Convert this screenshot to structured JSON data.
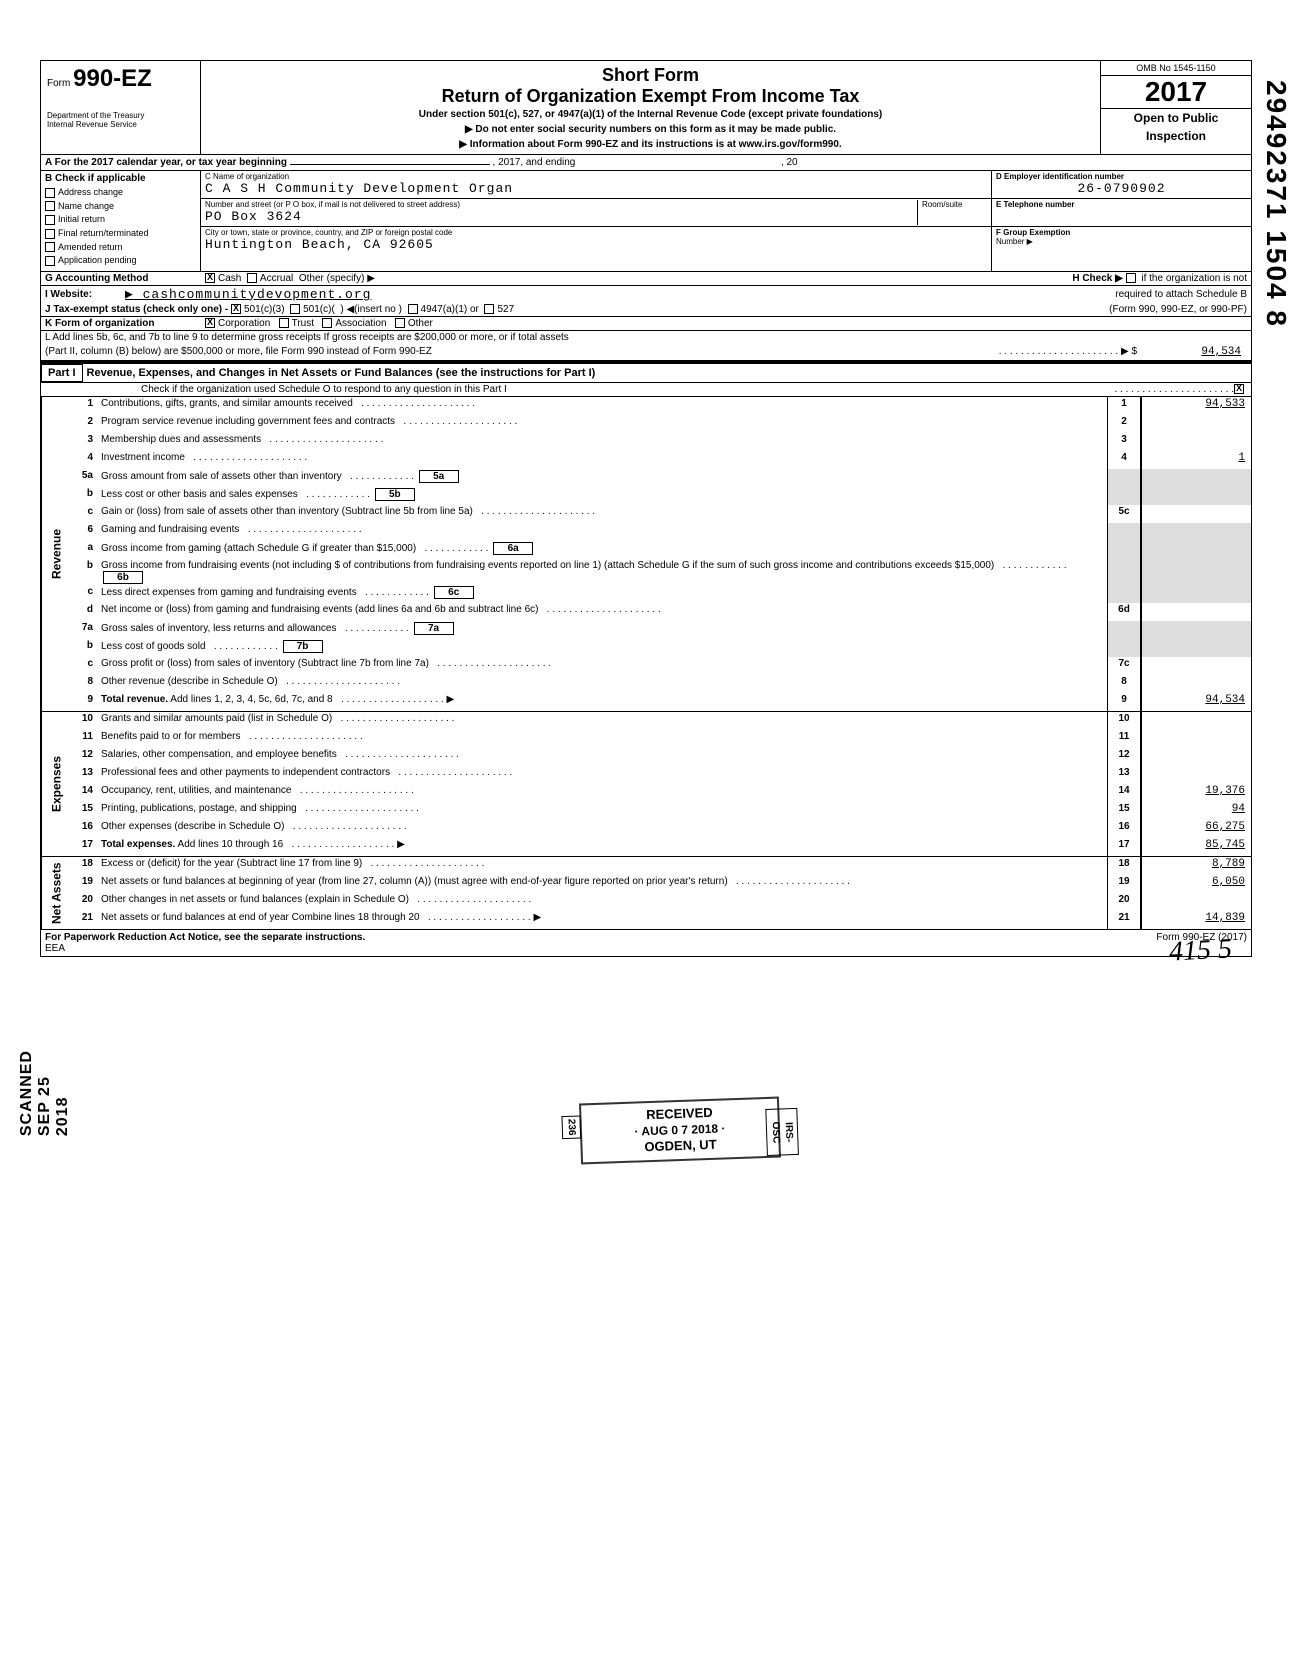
{
  "meta": {
    "omb": "OMB No 1545-1150",
    "year": "2017",
    "open": "Open to Public",
    "inspection": "Inspection",
    "watermark": "29492371 1504 8"
  },
  "header": {
    "form_label": "Form",
    "form_number": "990-EZ",
    "dept1": "Department of the Treasury",
    "dept2": "Internal Revenue Service",
    "title1": "Short Form",
    "title2": "Return of Organization Exempt From Income Tax",
    "sub": "Under section 501(c), 527, or 4947(a)(1) of the Internal Revenue Code (except private foundations)",
    "arrow1": "▶  Do not enter social security numbers on this form as it may be made public.",
    "arrow2": "▶  Information about Form 990-EZ and its instructions is at www.irs.gov/form990."
  },
  "section_a": {
    "a_label": "A  For the 2017 calendar year, or tax year beginning",
    "a_mid": ", 2017, and ending",
    "a_end": ", 20"
  },
  "checks": {
    "header": "B  Check if applicable",
    "items": [
      "Address change",
      "Name change",
      "Initial return",
      "Final return/terminated",
      "Amended return",
      "Application pending"
    ]
  },
  "org": {
    "name_label": "C   Name of organization",
    "name": "C A S H Community Development Organ",
    "street_label": "Number and street (or P O  box, if mail is not delivered to street address)",
    "room_label": "Room/suite",
    "street": "PO Box 3624",
    "city_label": "City or town, state or province, country, and ZIP or foreign postal code",
    "city": "Huntington Beach, CA 92605"
  },
  "right_block": {
    "d_label": "D  Employer identification number",
    "d_value": "26-0790902",
    "e_label": "E  Telephone number",
    "f_label": "F  Group Exemption",
    "f_sub": "Number  ▶"
  },
  "lines_top": {
    "g": "G  Accounting Method",
    "g_cash": "Cash",
    "g_accrual": "Accrual",
    "g_other": "Other (specify) ▶",
    "h": "H  Check ▶",
    "h_text": "if the organization is not",
    "h_text2": "required to attach Schedule B",
    "h_text3": "(Form 990, 990-EZ, or 990-PF)",
    "i": "I    Website:",
    "i_value": "▶ cashcommunitydevopment.org",
    "j": "J   Tax-exempt status (check only one) -",
    "j_opts": [
      "501(c)(3)",
      "501(c)(",
      "(insert no )",
      "4947(a)(1) or",
      "527"
    ],
    "k": "K  Form of organization",
    "k_opts": [
      "Corporation",
      "Trust",
      "Association",
      "Other"
    ],
    "l": "L  Add lines 5b, 6c, and 7b to line 9 to determine gross receipts  If gross receipts are $200,000 or more, or if total assets",
    "l2": "(Part II, column (B) below) are $500,000 or more, file Form 990 instead of Form 990-EZ",
    "l_arrow": "▶ $",
    "l_value": "94,534"
  },
  "part1": {
    "label": "Part I",
    "title": "Revenue, Expenses, and Changes in Net Assets or Fund Balances (see the instructions for Part I)",
    "check_line": "Check if the organization used Schedule O to respond to any question in this Part I"
  },
  "revenue_lines": [
    {
      "n": "1",
      "d": "Contributions, gifts, grants, and similar amounts received",
      "box": "1",
      "amt": "94,533"
    },
    {
      "n": "2",
      "d": "Program service revenue including government fees and contracts",
      "box": "2",
      "amt": ""
    },
    {
      "n": "3",
      "d": "Membership dues and assessments",
      "box": "3",
      "amt": ""
    },
    {
      "n": "4",
      "d": "Investment income",
      "box": "4",
      "amt": "1"
    },
    {
      "n": "5a",
      "d": "Gross amount from sale of assets other than inventory",
      "mid": "5a"
    },
    {
      "n": "b",
      "d": "Less  cost or other basis and sales expenses",
      "mid": "5b"
    },
    {
      "n": "c",
      "d": "Gain or (loss) from sale of assets other than inventory (Subtract line 5b from line 5a)",
      "box": "5c",
      "amt": ""
    },
    {
      "n": "6",
      "d": "Gaming and fundraising events"
    },
    {
      "n": "a",
      "d": "Gross income from gaming (attach Schedule G if greater than $15,000)",
      "mid": "6a"
    },
    {
      "n": "b",
      "d": "Gross income from fundraising events (not including       $                                    of contributions from fundraising events reported on line 1) (attach Schedule G if the sum of such gross income and contributions exceeds $15,000)",
      "mid": "6b"
    },
    {
      "n": "c",
      "d": "Less  direct expenses from gaming and fundraising events",
      "mid": "6c"
    },
    {
      "n": "d",
      "d": "Net income or (loss) from gaming and fundraising events (add lines 6a and 6b and subtract line 6c)",
      "box": "6d",
      "amt": ""
    },
    {
      "n": "7a",
      "d": "Gross sales of inventory, less returns and allowances",
      "mid": "7a"
    },
    {
      "n": "b",
      "d": "Less  cost of goods sold",
      "mid": "7b"
    },
    {
      "n": "c",
      "d": "Gross profit or (loss) from sales of inventory (Subtract line 7b from line 7a)",
      "box": "7c",
      "amt": ""
    },
    {
      "n": "8",
      "d": "Other revenue (describe in Schedule O)",
      "box": "8",
      "amt": ""
    },
    {
      "n": "9",
      "d": "Total revenue.  Add lines 1, 2, 3, 4, 5c, 6d, 7c, and 8",
      "box": "9",
      "amt": "94,534",
      "arrow": true,
      "bold": true
    }
  ],
  "expense_lines": [
    {
      "n": "10",
      "d": "Grants and similar amounts paid (list in Schedule O)",
      "box": "10",
      "amt": ""
    },
    {
      "n": "11",
      "d": "Benefits paid to or for members",
      "box": "11",
      "amt": ""
    },
    {
      "n": "12",
      "d": "Salaries, other compensation, and employee benefits",
      "box": "12",
      "amt": ""
    },
    {
      "n": "13",
      "d": "Professional fees and other payments to independent contractors",
      "box": "13",
      "amt": ""
    },
    {
      "n": "14",
      "d": "Occupancy, rent, utilities, and maintenance",
      "box": "14",
      "amt": "19,376"
    },
    {
      "n": "15",
      "d": "Printing, publications, postage, and shipping",
      "box": "15",
      "amt": "94"
    },
    {
      "n": "16",
      "d": "Other expenses (describe in Schedule O)",
      "box": "16",
      "amt": "66,275"
    },
    {
      "n": "17",
      "d": "Total expenses.  Add lines 10 through 16",
      "box": "17",
      "amt": "85,745",
      "arrow": true,
      "bold": true
    }
  ],
  "netasset_lines": [
    {
      "n": "18",
      "d": "Excess or (deficit) for the year (Subtract line 17 from line 9)",
      "box": "18",
      "amt": "8,789"
    },
    {
      "n": "19",
      "d": "Net assets or fund balances at beginning of year (from line 27, column (A)) (must agree with end-of-year figure reported on prior year's return)",
      "box": "19",
      "amt": "6,050"
    },
    {
      "n": "20",
      "d": "Other changes in net assets or fund balances (explain in Schedule O)",
      "box": "20",
      "amt": ""
    },
    {
      "n": "21",
      "d": "Net assets or fund balances at end of year  Combine lines 18 through 20",
      "box": "21",
      "amt": "14,839",
      "arrow": true
    }
  ],
  "side_labels": {
    "revenue": "Revenue",
    "expenses": "Expenses",
    "netassets": "Net Assets"
  },
  "stamp": {
    "received": "RECEIVED",
    "date": "AUG 0 7 2018",
    "place": "OGDEN, UT",
    "side_num": "236",
    "side_txt": "IRS-OSC"
  },
  "scan": "SCANNED SEP 25 2018",
  "footer": {
    "left": "For Paperwork Reduction Act Notice, see the separate instructions.",
    "eea": "EEA",
    "right": "Form 990-EZ (2017)"
  },
  "handnote": "415   5"
}
